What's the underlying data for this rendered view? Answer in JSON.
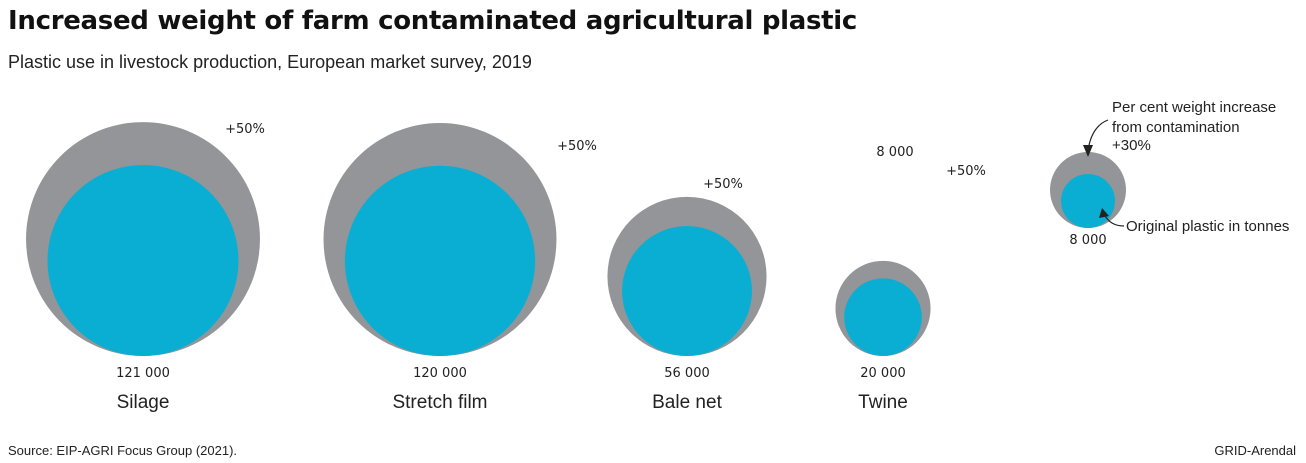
{
  "title": "Increased weight of farm contaminated agricultural plastic",
  "subtitle": "Plastic use in livestock production, European market survey, 2019",
  "source": "Source: EIP-AGRI Focus Group (2021).",
  "credit": "GRID-Arendal",
  "colors": {
    "contaminated": "#939598",
    "original": "#0baed3",
    "text": "#222222"
  },
  "chart_data": {
    "type": "bubble",
    "categories": [
      "Silage",
      "Stretch film",
      "Bale net",
      "Twine"
    ],
    "original_tonnes": [
      121000,
      120000,
      56000,
      20000
    ],
    "original_labels": [
      "121 000",
      "120 000",
      "56 000",
      "20 000"
    ],
    "increase_percent": [
      50,
      50,
      50,
      50
    ],
    "increase_labels": [
      "+50%",
      "+50%",
      "+50%",
      "+50%"
    ],
    "extra_labels": [
      "",
      "",
      "",
      "8 000"
    ],
    "legend": {
      "increase_caption_line1": "Per cent weight increase",
      "increase_caption_line2": "from contamination",
      "increase_example": "+30%",
      "original_caption": "Original plastic in tonnes",
      "original_example": "8 000"
    }
  }
}
